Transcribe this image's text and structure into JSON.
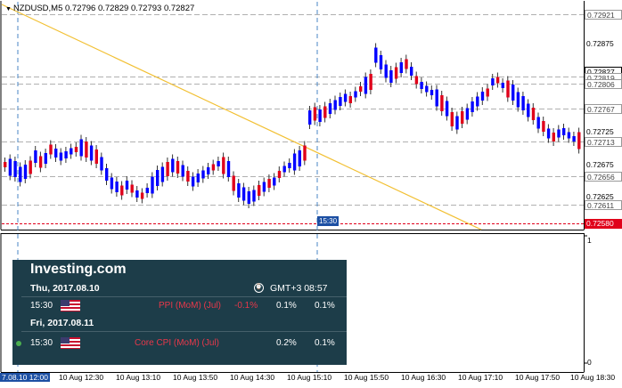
{
  "title": {
    "arrow": "▼",
    "symbol": "NZDUSD,M5",
    "ohlc": "0.72796 0.72829 0.72793 0.72827"
  },
  "price_labels": [
    {
      "text": "0.72921",
      "type": "level"
    },
    {
      "text": "0.72875",
      "type": "tick"
    },
    {
      "text": "0.72827",
      "type": "current"
    },
    {
      "text": "0.72819",
      "type": "level"
    },
    {
      "text": "0.72806",
      "type": "level"
    },
    {
      "text": "0.72767",
      "type": "level"
    },
    {
      "text": "0.72725",
      "type": "tick"
    },
    {
      "text": "0.72713",
      "type": "level"
    },
    {
      "text": "0.72675",
      "type": "tick"
    },
    {
      "text": "0.72656",
      "type": "level"
    },
    {
      "text": "0.72625",
      "type": "tick"
    },
    {
      "text": "0.72611",
      "type": "level"
    },
    {
      "text": "0.72580",
      "type": "red"
    }
  ],
  "time_labels": [
    {
      "text": "7.08.10 12:00",
      "type": "blue"
    },
    {
      "text": "10 Aug 12:30"
    },
    {
      "text": "10 Aug 13:10"
    },
    {
      "text": "10 Aug 13:50"
    },
    {
      "text": "10 Aug 14:30"
    },
    {
      "text": "10 Aug 15:10"
    },
    {
      "text": "10 Aug 15:50"
    },
    {
      "text": "10 Aug 16:30"
    },
    {
      "text": "10 Aug 17:10"
    },
    {
      "text": "10 Aug 17:50"
    },
    {
      "text": "10 Aug 18:30"
    }
  ],
  "marker_label": "15:30",
  "subwindow": {
    "scale_top": "1",
    "scale_bottom": "0"
  },
  "colors": {
    "bull": "#0000ff",
    "bear": "#e0001a",
    "trendline": "#f2c033",
    "vline": "#4a86c5",
    "panel": "#1d3d49"
  },
  "calendar": {
    "brand": "Investing.com",
    "timezone": "GMT+3 08:57",
    "clock_icon": "clock-icon",
    "days": [
      {
        "label": "Thu, 2017.08.10",
        "events": [
          {
            "time": "15:30",
            "flag": "us-flag-icon",
            "name": "PPI (MoM) (Jul)",
            "actual": "-0.1%",
            "forecast": "0.1%",
            "previous": "0.1%"
          }
        ]
      },
      {
        "label": "Fri, 2017.08.11",
        "events": [
          {
            "time": "15:30",
            "flag": "us-flag-icon",
            "name": "Core CPI (MoM) (Jul)",
            "actual": "",
            "forecast": "0.2%",
            "previous": "0.1%"
          }
        ]
      }
    ]
  }
}
